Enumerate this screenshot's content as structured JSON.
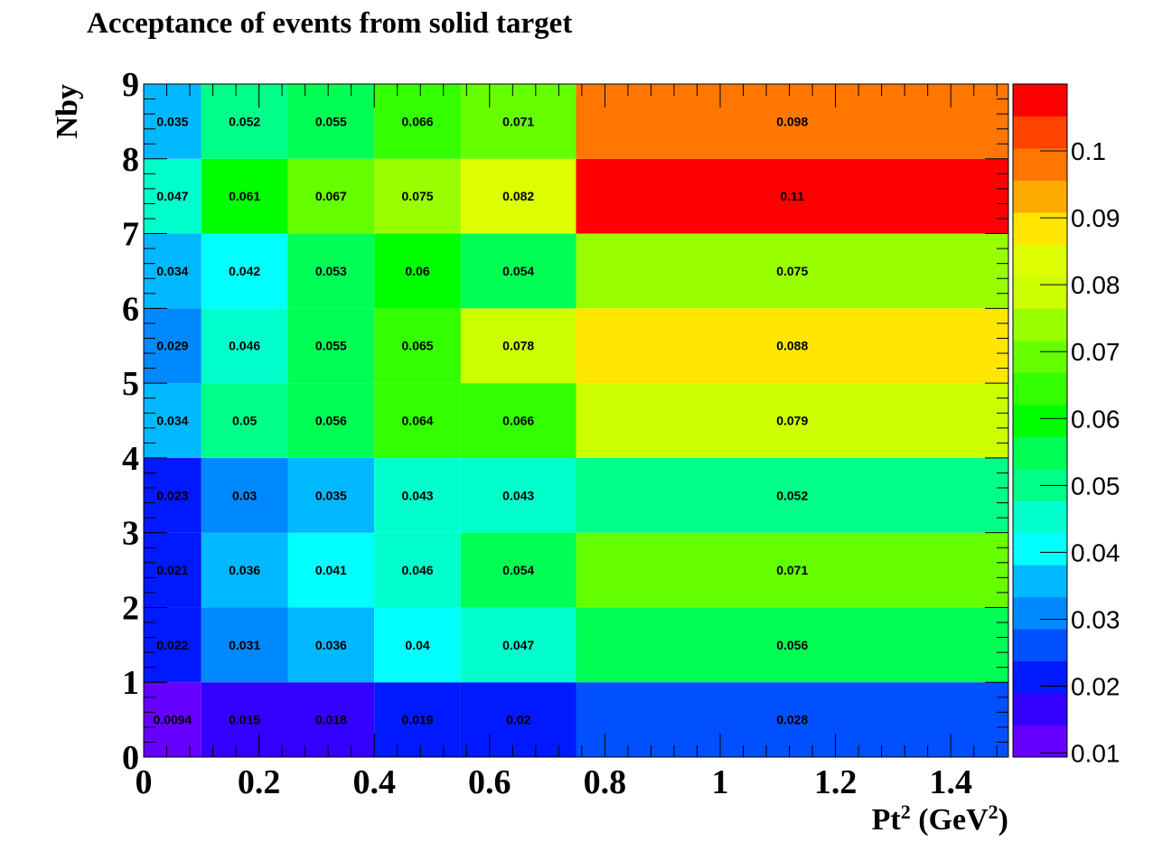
{
  "chart_data": {
    "type": "heatmap",
    "title": "Acceptance of events from solid target",
    "xlabel": "Pt",
    "xlabel_sup1": "2",
    "xlabel_mid": " (GeV",
    "xlabel_sup2": "2",
    "xlabel_end": ")",
    "ylabel": "Nby",
    "xlim": [
      0,
      1.5
    ],
    "ylim": [
      0,
      9
    ],
    "x_edges": [
      0,
      0.1,
      0.25,
      0.4,
      0.55,
      0.75,
      1.5
    ],
    "y_edges": [
      0,
      1,
      2,
      3,
      4,
      5,
      6,
      7,
      8,
      9
    ],
    "x_ticks": [
      "0",
      "0.2",
      "0.4",
      "0.6",
      "0.8",
      "1",
      "1.2",
      "1.4"
    ],
    "x_tick_values": [
      0,
      0.2,
      0.4,
      0.6,
      0.8,
      1.0,
      1.2,
      1.4
    ],
    "y_ticks": [
      "0",
      "1",
      "2",
      "3",
      "4",
      "5",
      "6",
      "7",
      "8",
      "9"
    ],
    "y_tick_values": [
      0,
      1,
      2,
      3,
      4,
      5,
      6,
      7,
      8,
      9
    ],
    "values": [
      [
        0.0094,
        0.015,
        0.018,
        0.019,
        0.02,
        0.028
      ],
      [
        0.022,
        0.031,
        0.036,
        0.04,
        0.047,
        0.056
      ],
      [
        0.021,
        0.036,
        0.041,
        0.046,
        0.054,
        0.071
      ],
      [
        0.023,
        0.03,
        0.035,
        0.043,
        0.043,
        0.052
      ],
      [
        0.034,
        0.05,
        0.056,
        0.064,
        0.066,
        0.079
      ],
      [
        0.029,
        0.046,
        0.055,
        0.065,
        0.078,
        0.088
      ],
      [
        0.034,
        0.042,
        0.053,
        0.06,
        0.054,
        0.075
      ],
      [
        0.047,
        0.061,
        0.067,
        0.075,
        0.082,
        0.11
      ],
      [
        0.035,
        0.052,
        0.055,
        0.066,
        0.071,
        0.098
      ]
    ],
    "value_labels": [
      [
        "0.0094",
        "0.015",
        "0.018",
        "0.019",
        "0.02",
        "0.028"
      ],
      [
        "0.022",
        "0.031",
        "0.036",
        "0.04",
        "0.047",
        "0.056"
      ],
      [
        "0.021",
        "0.036",
        "0.041",
        "0.046",
        "0.054",
        "0.071"
      ],
      [
        "0.023",
        "0.03",
        "0.035",
        "0.043",
        "0.043",
        "0.052"
      ],
      [
        "0.034",
        "0.05",
        "0.056",
        "0.064",
        "0.066",
        "0.079"
      ],
      [
        "0.029",
        "0.046",
        "0.055",
        "0.065",
        "0.078",
        "0.088"
      ],
      [
        "0.034",
        "0.042",
        "0.053",
        "0.06",
        "0.054",
        "0.075"
      ],
      [
        "0.047",
        "0.061",
        "0.067",
        "0.075",
        "0.082",
        "0.11"
      ],
      [
        "0.035",
        "0.052",
        "0.055",
        "0.066",
        "0.071",
        "0.098"
      ]
    ],
    "colorbar": {
      "min": 0.0094,
      "max": 0.11,
      "labels": [
        "0.01",
        "0.02",
        "0.03",
        "0.04",
        "0.05",
        "0.06",
        "0.07",
        "0.08",
        "0.09",
        "0.1"
      ],
      "label_values": [
        0.01,
        0.02,
        0.03,
        0.04,
        0.05,
        0.06,
        0.07,
        0.08,
        0.09,
        0.1
      ],
      "colors": [
        "#6600ff",
        "#3300ff",
        "#0019ff",
        "#0050ff",
        "#0088ff",
        "#00b8ff",
        "#00ffff",
        "#00ffcc",
        "#00ff88",
        "#00ff55",
        "#00ff00",
        "#33ff00",
        "#66ff00",
        "#99ff00",
        "#ccff00",
        "#ddff00",
        "#ffe600",
        "#ffaa00",
        "#ff7700",
        "#ff4400",
        "#ff0000"
      ]
    },
    "grid": false
  }
}
